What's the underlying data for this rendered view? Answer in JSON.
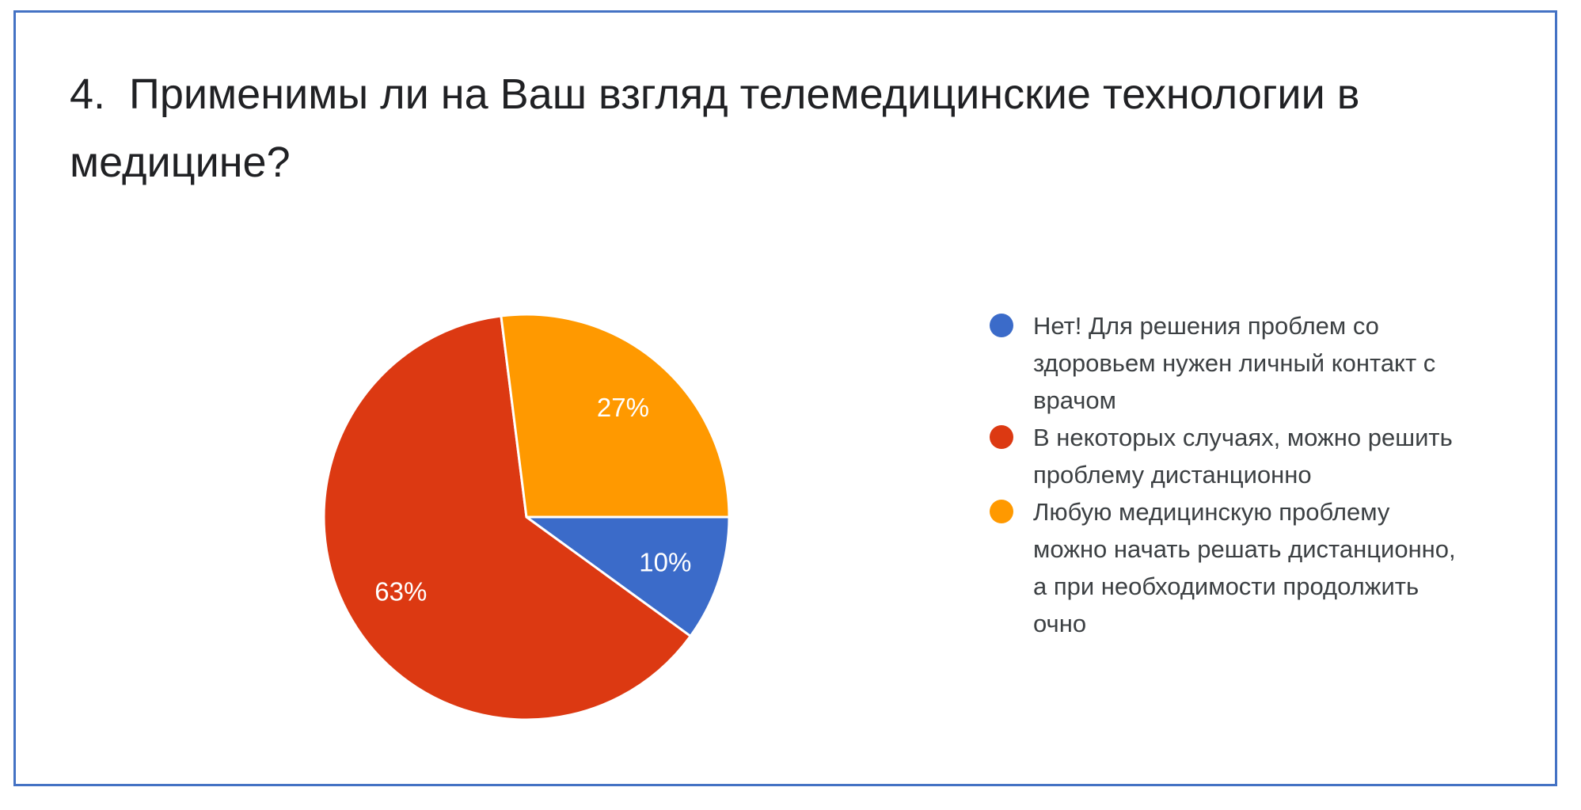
{
  "page": {
    "background_color": "#ffffff",
    "border_color": "#4472C4"
  },
  "chart_data": {
    "type": "pie",
    "title": "4.  Применимы ли на Ваш взгляд телемедицинские технологии в медицине?",
    "legend_position": "right",
    "start_angle_deg": 90,
    "direction": "clockwise",
    "data_label_color": "#ffffff",
    "slices": [
      {
        "label": "Нет! Для решения проблем со здоровьем нужен личный контакт с врачом",
        "value_pct": 10,
        "data_label": "10%",
        "color": "#3B6BC9"
      },
      {
        "label": "В некоторых случаях, можно решить проблему дистанционно",
        "value_pct": 63,
        "data_label": "63%",
        "color": "#DC3912"
      },
      {
        "label": "Любую медицинскую проблему можно начать решать дистанционно, а при необходимости продолжить очно",
        "value_pct": 27,
        "data_label": "27%",
        "color": "#FF9900"
      }
    ]
  }
}
